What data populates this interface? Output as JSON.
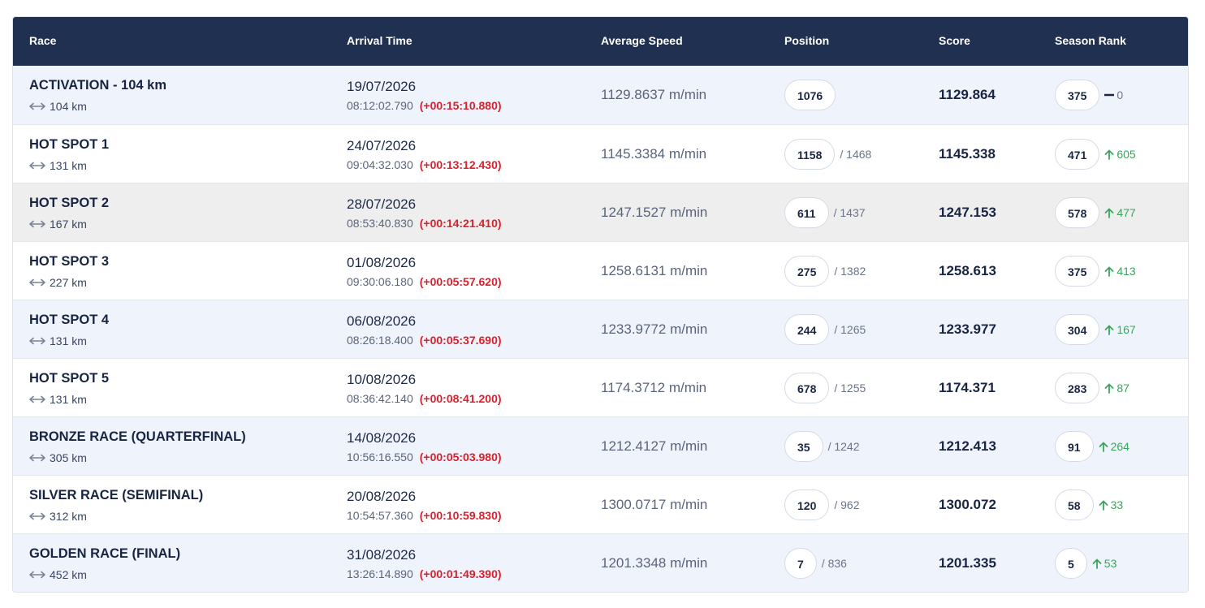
{
  "header": {
    "race": "Race",
    "arrival": "Arrival Time",
    "speed": "Average Speed",
    "position": "Position",
    "score": "Score",
    "rank": "Season Rank"
  },
  "rows": [
    {
      "name": "ACTIVATION - 104 km",
      "distance": "104 km",
      "date": "19/07/2026",
      "time": "08:12:02.790",
      "delta": "(+00:15:10.880)",
      "speed": "1129.8637 m/min",
      "position": "1076",
      "total": "",
      "score": "1129.864",
      "rank": "375",
      "change": "0",
      "trend": "flat"
    },
    {
      "name": "HOT SPOT 1",
      "distance": "131 km",
      "date": "24/07/2026",
      "time": "09:04:32.030",
      "delta": "(+00:13:12.430)",
      "speed": "1145.3384 m/min",
      "position": "1158",
      "total": "/ 1468",
      "score": "1145.338",
      "rank": "471",
      "change": "605",
      "trend": "up"
    },
    {
      "name": "HOT SPOT 2",
      "distance": "167 km",
      "date": "28/07/2026",
      "time": "08:53:40.830",
      "delta": "(+00:14:21.410)",
      "speed": "1247.1527 m/min",
      "position": "611",
      "total": "/ 1437",
      "score": "1247.153",
      "rank": "578",
      "change": "477",
      "trend": "up"
    },
    {
      "name": "HOT SPOT 3",
      "distance": "227 km",
      "date": "01/08/2026",
      "time": "09:30:06.180",
      "delta": "(+00:05:57.620)",
      "speed": "1258.6131 m/min",
      "position": "275",
      "total": "/ 1382",
      "score": "1258.613",
      "rank": "375",
      "change": "413",
      "trend": "up"
    },
    {
      "name": "HOT SPOT 4",
      "distance": "131 km",
      "date": "06/08/2026",
      "time": "08:26:18.400",
      "delta": "(+00:05:37.690)",
      "speed": "1233.9772 m/min",
      "position": "244",
      "total": "/ 1265",
      "score": "1233.977",
      "rank": "304",
      "change": "167",
      "trend": "up"
    },
    {
      "name": "HOT SPOT 5",
      "distance": "131 km",
      "date": "10/08/2026",
      "time": "08:36:42.140",
      "delta": "(+00:08:41.200)",
      "speed": "1174.3712 m/min",
      "position": "678",
      "total": "/ 1255",
      "score": "1174.371",
      "rank": "283",
      "change": "87",
      "trend": "up"
    },
    {
      "name": "BRONZE RACE (QUARTERFINAL)",
      "distance": "305 km",
      "date": "14/08/2026",
      "time": "10:56:16.550",
      "delta": "(+00:05:03.980)",
      "speed": "1212.4127 m/min",
      "position": "35",
      "total": "/ 1242",
      "score": "1212.413",
      "rank": "91",
      "change": "264",
      "trend": "up"
    },
    {
      "name": "SILVER RACE (SEMIFINAL)",
      "distance": "312 km",
      "date": "20/08/2026",
      "time": "10:54:57.360",
      "delta": "(+00:10:59.830)",
      "speed": "1300.0717 m/min",
      "position": "120",
      "total": "/ 962",
      "score": "1300.072",
      "rank": "58",
      "change": "33",
      "trend": "up"
    },
    {
      "name": "GOLDEN RACE (FINAL)",
      "distance": "452 km",
      "date": "31/08/2026",
      "time": "13:26:14.890",
      "delta": "(+00:01:49.390)",
      "speed": "1201.3348 m/min",
      "position": "7",
      "total": "/ 836",
      "score": "1201.335",
      "rank": "5",
      "change": "53",
      "trend": "up"
    }
  ],
  "colors": {
    "header_bg": "#1f3050",
    "alt_row": "#eff4fc",
    "hover_row": "#eeeeee",
    "delta": "#d9202c",
    "up": "#3aa55c"
  }
}
